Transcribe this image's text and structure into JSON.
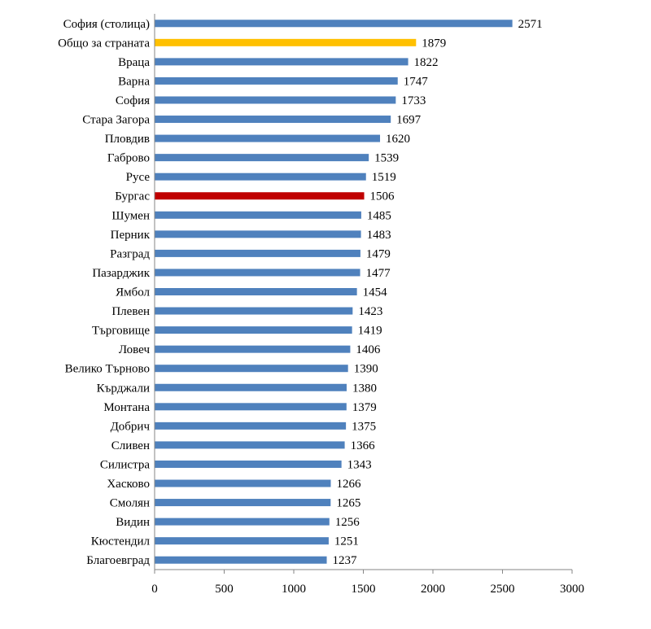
{
  "chart_data": {
    "type": "bar",
    "orientation": "horizontal",
    "title": "",
    "xlabel": "",
    "ylabel": "",
    "xlim": [
      0,
      3000
    ],
    "x_ticks": [
      0,
      500,
      1000,
      1500,
      2000,
      2500,
      3000
    ],
    "grid": false,
    "legend": "none",
    "default_color": "#4f81bd",
    "categories": [
      "София (столица)",
      "Общо за страната",
      "Враца",
      "Варна",
      "София",
      "Стара Загора",
      "Пловдив",
      "Габрово",
      "Русе",
      "Бургас",
      "Шумен",
      "Перник",
      "Разград",
      "Пазарджик",
      "Ямбол",
      "Плевен",
      "Търговище",
      "Ловеч",
      "Велико Търново",
      "Кърджали",
      "Монтана",
      "Добрич",
      "Сливен",
      "Силистра",
      "Хасково",
      "Смолян",
      "Видин",
      "Кюстендил",
      "Благоевград"
    ],
    "values": [
      2571,
      1879,
      1822,
      1747,
      1733,
      1697,
      1620,
      1539,
      1519,
      1506,
      1485,
      1483,
      1479,
      1477,
      1454,
      1423,
      1419,
      1406,
      1390,
      1380,
      1379,
      1375,
      1366,
      1343,
      1266,
      1265,
      1256,
      1251,
      1237
    ],
    "highlight_colors": {
      "1": "#ffc000",
      "9": "#c00000"
    }
  }
}
